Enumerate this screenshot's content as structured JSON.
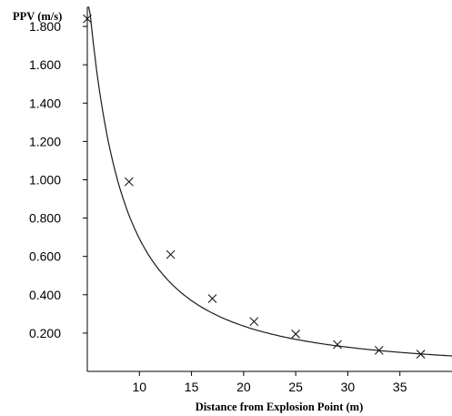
{
  "chart_data": {
    "type": "scatter",
    "ylabel": "PPV (m/s)",
    "xlabel": "Distance from Explosion Point (m)",
    "xlim": [
      5,
      40
    ],
    "ylim": [
      0,
      1.9
    ],
    "x_ticks": [
      10,
      15,
      20,
      25,
      30,
      35
    ],
    "x_tick_labels": [
      "10",
      "15",
      "20",
      "25",
      "30",
      "35"
    ],
    "y_ticks": [
      0.2,
      0.4,
      0.6,
      0.8,
      1.0,
      1.2,
      1.4,
      1.6,
      1.8
    ],
    "y_tick_labels": [
      "0.200",
      "0.400",
      "0.600",
      "0.800",
      "1.000",
      "1.200",
      "1.400",
      "1.600",
      "1.800"
    ],
    "grid": false,
    "series": [
      {
        "marker": "x",
        "x": [
          5,
          9,
          13,
          17,
          21,
          25,
          29,
          33,
          37
        ],
        "y": [
          1.84,
          0.99,
          0.61,
          0.38,
          0.26,
          0.195,
          0.14,
          0.11,
          0.09
        ]
      },
      {
        "style": "line",
        "fit": "power",
        "coefficient": 24.58,
        "exponent": -1.55,
        "x_start": 4.7,
        "x_end": 40
      }
    ]
  }
}
